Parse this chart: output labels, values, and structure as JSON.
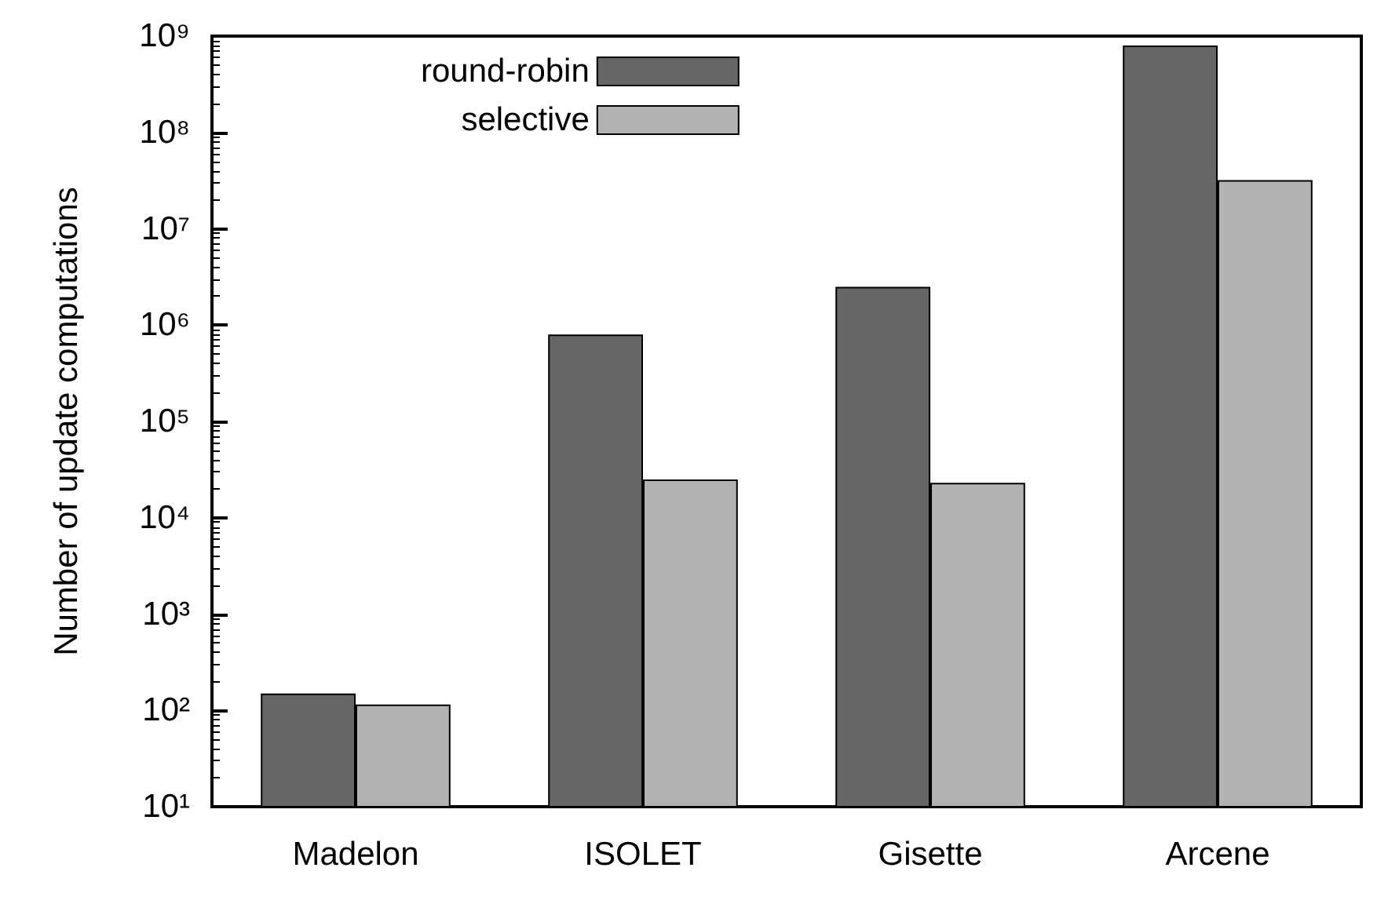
{
  "chart_data": {
    "type": "bar",
    "ylabel": "Number of update computations",
    "categories": [
      "Madelon",
      "ISOLET",
      "Gisette",
      "Arcene"
    ],
    "series": [
      {
        "name": "round-robin",
        "color": "#666666",
        "values": [
          150,
          800000,
          2500000,
          800000000
        ]
      },
      {
        "name": "selective",
        "color": "#b3b3b3",
        "values": [
          115,
          25000,
          23000,
          32000000
        ]
      }
    ],
    "log": "y",
    "ylim": [
      10,
      1000000000
    ],
    "yticks": [
      {
        "value": 10,
        "label": "10¹"
      },
      {
        "value": 100,
        "label": "10²"
      },
      {
        "value": 1000,
        "label": "10³"
      },
      {
        "value": 10000,
        "label": "10⁴"
      },
      {
        "value": 100000,
        "label": "10⁵"
      },
      {
        "value": 1000000,
        "label": "10⁶"
      },
      {
        "value": 10000000,
        "label": "10⁷"
      },
      {
        "value": 100000000,
        "label": "10⁸"
      },
      {
        "value": 1000000000,
        "label": "10⁹"
      }
    ],
    "grid": false,
    "legend": "top left"
  }
}
